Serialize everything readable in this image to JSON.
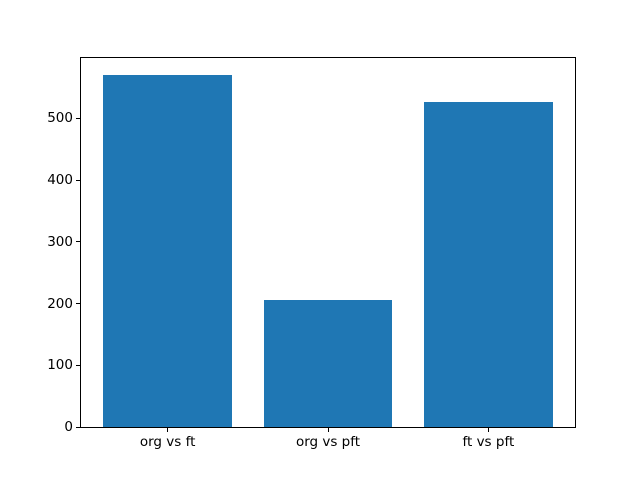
{
  "chart_data": {
    "type": "bar",
    "categories": [
      "org vs ft",
      "org vs pft",
      "ft vs pft"
    ],
    "values": [
      570,
      206,
      527
    ],
    "title": "",
    "xlabel": "",
    "ylabel": "",
    "ylim": [
      0,
      598
    ],
    "yticks": [
      0,
      100,
      200,
      300,
      400,
      500
    ],
    "bar_color": "#1f77b4",
    "axes_edge_color": "#000000",
    "background_color": "#ffffff",
    "bar_width_fraction": 0.8,
    "x_margin_fraction": 0.05,
    "grid": false,
    "legend": null
  }
}
